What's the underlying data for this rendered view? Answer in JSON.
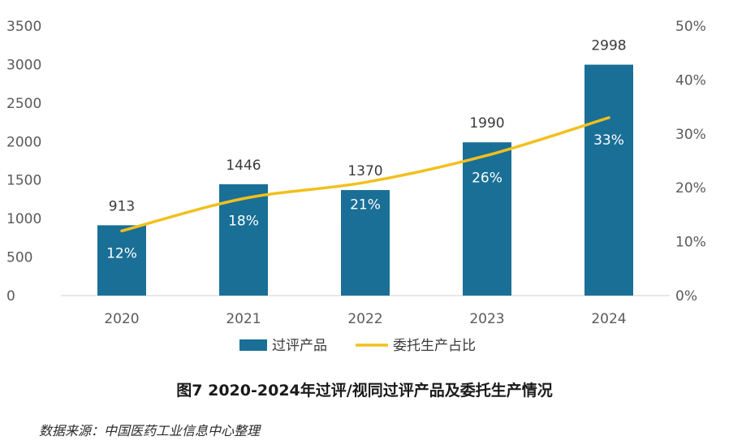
{
  "chart_data": {
    "type": "bar",
    "categories": [
      "2020",
      "2021",
      "2022",
      "2023",
      "2024"
    ],
    "series": [
      {
        "name": "过评产品",
        "kind": "bar",
        "axis": "left",
        "values": [
          913,
          1446,
          1370,
          1990,
          2998
        ],
        "value_labels": [
          "913",
          "1446",
          "1370",
          "1990",
          "2998"
        ]
      },
      {
        "name": "委托生产占比",
        "kind": "line",
        "axis": "right",
        "values": [
          12,
          18,
          21,
          26,
          33
        ],
        "value_labels": [
          "12%",
          "18%",
          "21%",
          "26%",
          "33%"
        ]
      }
    ],
    "ylim_left": [
      0,
      3500
    ],
    "yticks_left": [
      "0",
      "500",
      "1000",
      "1500",
      "2000",
      "2500",
      "3000",
      "3500"
    ],
    "ylim_right": [
      0,
      50
    ],
    "yticks_right": [
      "0%",
      "10%",
      "20%",
      "30%",
      "40%",
      "50%"
    ],
    "legend": [
      "过评产品",
      "委托生产占比"
    ],
    "legend_position": "bottom",
    "colors": {
      "bar": "#1a6f96",
      "line": "#f2c01d"
    },
    "title": "图7 2020-2024年过评/视同过评产品及委托生产情况",
    "source": "数据来源：中国医药工业信息中心整理"
  }
}
